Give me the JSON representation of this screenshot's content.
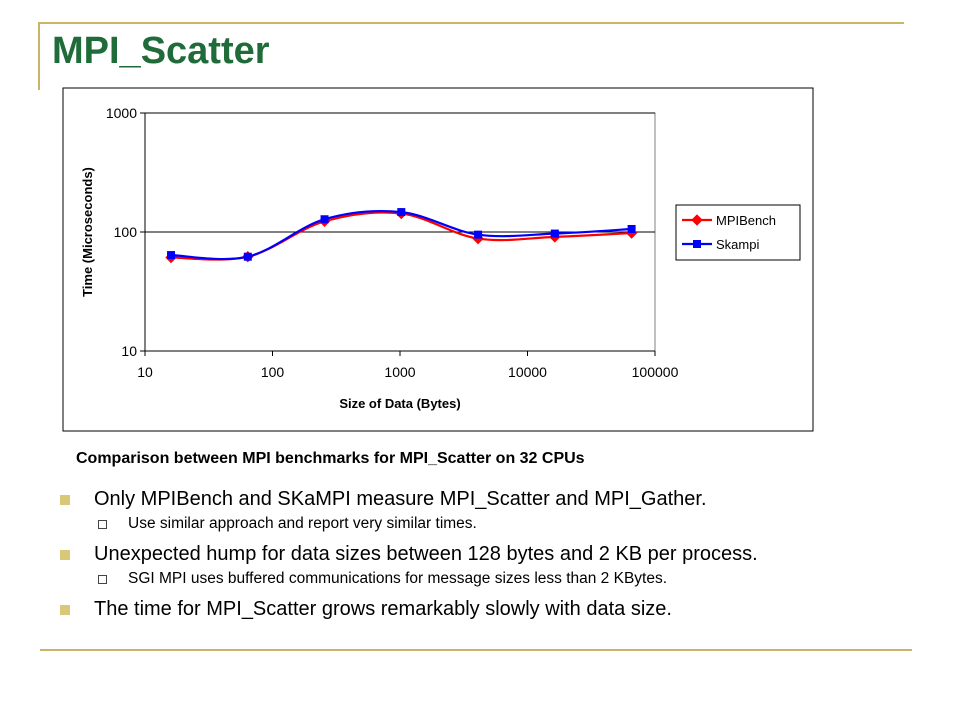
{
  "slide": {
    "title": "MPI_Scatter",
    "caption": "Comparison between MPI benchmarks for MPI_Scatter on 32 CPUs",
    "bullets": [
      {
        "text": "Only MPIBench and SKaMPI measure MPI_Scatter and MPI_Gather.",
        "sub": "Use similar approach and report very similar times."
      },
      {
        "text": "Unexpected hump for data sizes between 128 bytes and 2 KB per process.",
        "sub": "SGI MPI uses buffered communications for message sizes less than 2 KBytes."
      },
      {
        "text": "The time for MPI_Scatter grows remarkably slowly with data size.",
        "sub": ""
      }
    ]
  },
  "colors": {
    "title": "#1f6b3a",
    "rule": "#c9b46a",
    "mpibench": "#ff0000",
    "skampi": "#0000ff"
  },
  "chart_data": {
    "type": "line",
    "xlabel": "Size of Data (Bytes)",
    "ylabel": "Time (Microseconds)",
    "xscale": "log",
    "yscale": "log",
    "xlim": [
      10,
      100000
    ],
    "ylim": [
      10,
      1000
    ],
    "xticks": [
      "10",
      "100",
      "1000",
      "10000",
      "100000"
    ],
    "yticks": [
      "10",
      "100",
      "1000"
    ],
    "gridlines": "horizontal major",
    "legend_position": "right",
    "x": [
      16,
      64,
      256,
      1024,
      4096,
      16384,
      65536
    ],
    "series": [
      {
        "name": "MPIBench",
        "values": [
          61,
          62,
          123,
          143,
          88,
          91,
          98
        ]
      },
      {
        "name": "Skampi",
        "values": [
          64,
          62,
          128,
          147,
          95,
          97,
          106
        ]
      }
    ]
  }
}
